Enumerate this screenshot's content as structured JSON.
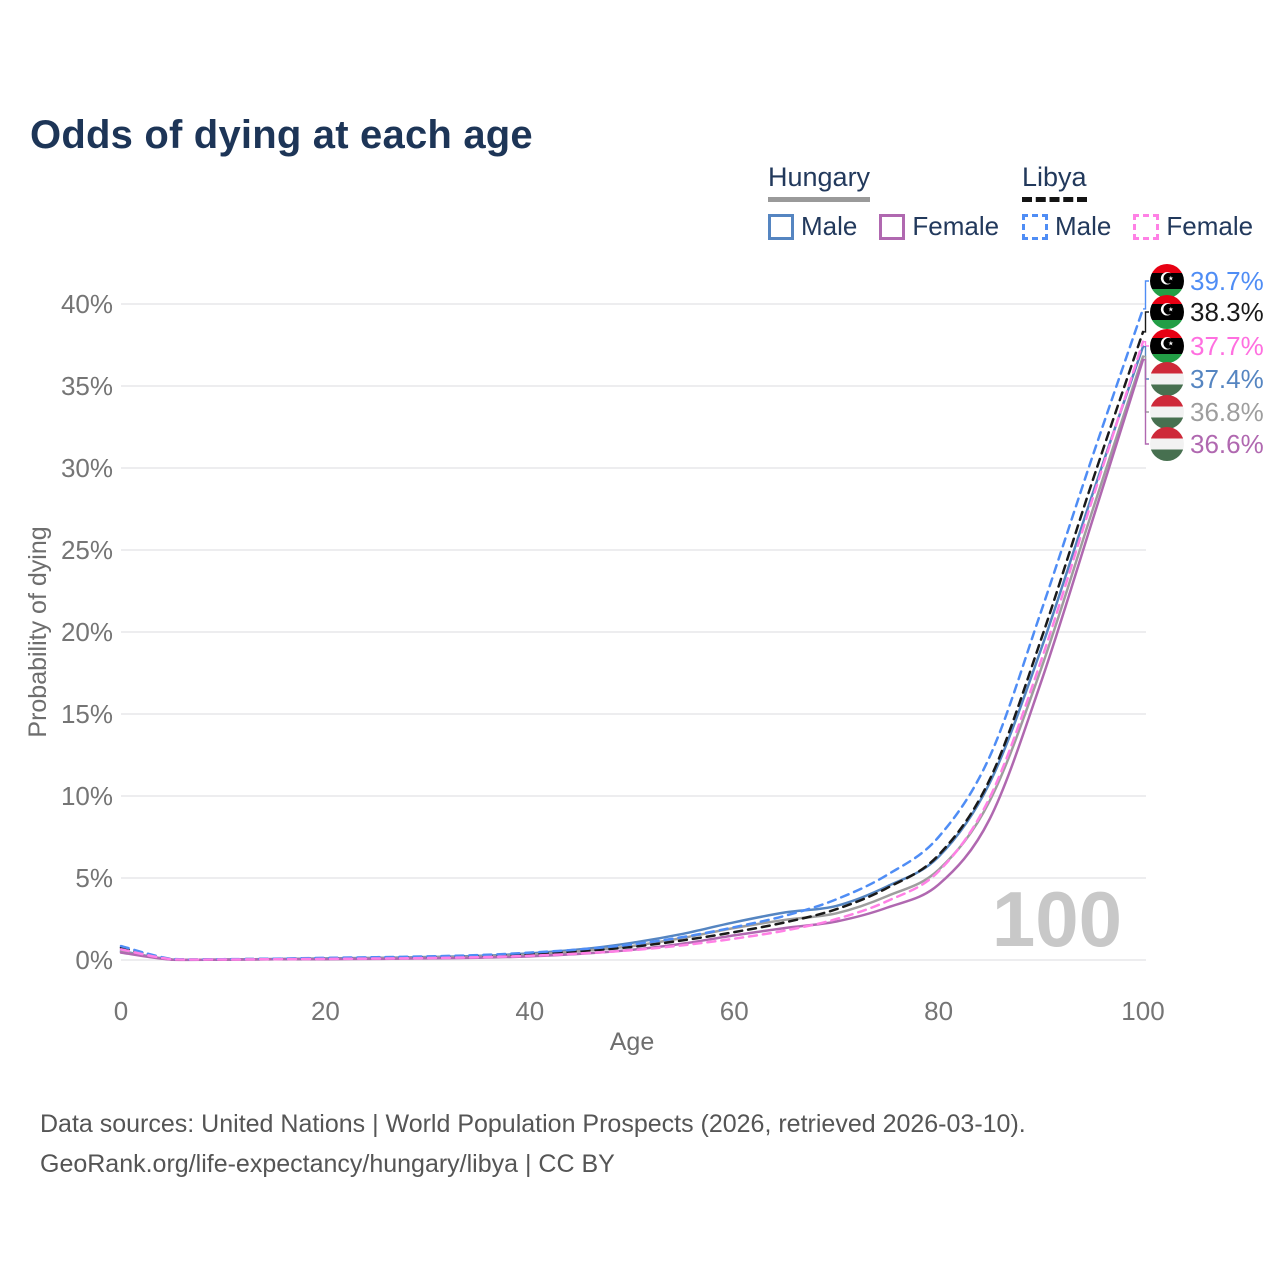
{
  "title": "Odds of dying at each age",
  "legend": {
    "groups": [
      {
        "country": "Hungary",
        "style": "solid",
        "underline_color": "#9a9a9a",
        "items": [
          {
            "label": "Male",
            "color": "#5585c1"
          },
          {
            "label": "Female",
            "color": "#b068b0"
          }
        ]
      },
      {
        "country": "Libya",
        "style": "dashed",
        "underline_color": "#141414",
        "items": [
          {
            "label": "Male",
            "color": "#4f8df5"
          },
          {
            "label": "Female",
            "color": "#ff80e5"
          }
        ]
      }
    ]
  },
  "end_labels": [
    {
      "value": "39.7%",
      "flag": "libya",
      "series": "Libya Male",
      "color": "#4f8df5"
    },
    {
      "value": "38.3%",
      "flag": "libya",
      "series": "Libya Both sexes",
      "color": "#1a1a1a"
    },
    {
      "value": "37.7%",
      "flag": "libya",
      "series": "Libya Female",
      "color": "#ff6fe0"
    },
    {
      "value": "37.4%",
      "flag": "hungary",
      "series": "Hungary Male",
      "color": "#5585c1"
    },
    {
      "value": "36.8%",
      "flag": "hungary",
      "series": "Hungary Both sexes",
      "color": "#9e9e9e"
    },
    {
      "value": "36.6%",
      "flag": "hungary",
      "series": "Hungary Female",
      "color": "#b068b0"
    }
  ],
  "watermark": "100",
  "chart_data": {
    "type": "line",
    "title": "Odds of dying at each age",
    "xlabel": "Age",
    "ylabel": "Probability of dying",
    "xlim": [
      0,
      100
    ],
    "ylim": [
      0,
      40
    ],
    "xticks": [
      0,
      20,
      40,
      60,
      80,
      100
    ],
    "ytick_labels": [
      "0%",
      "5%",
      "10%",
      "15%",
      "20%",
      "25%",
      "30%",
      "35%",
      "40%"
    ],
    "grid": "horizontal",
    "legend_position": "top-right",
    "x": [
      0,
      5,
      10,
      15,
      20,
      25,
      30,
      35,
      40,
      45,
      50,
      55,
      60,
      65,
      70,
      75,
      80,
      85,
      90,
      95,
      100
    ],
    "series": [
      {
        "name": "Libya Male",
        "country": "Libya",
        "sex": "Male",
        "color": "#4f8df5",
        "dash": true,
        "end_label": "39.7%",
        "values": [
          0.85,
          0.06,
          0.05,
          0.08,
          0.13,
          0.17,
          0.22,
          0.3,
          0.45,
          0.65,
          0.95,
          1.4,
          2.0,
          2.7,
          3.7,
          5.2,
          7.5,
          12.4,
          21.2,
          30.6,
          39.7
        ]
      },
      {
        "name": "Libya Both sexes",
        "country": "Libya",
        "sex": "Both",
        "color": "#1a1a1a",
        "dash": true,
        "end_label": "38.3%",
        "values": [
          0.75,
          0.05,
          0.04,
          0.07,
          0.11,
          0.14,
          0.18,
          0.25,
          0.36,
          0.54,
          0.8,
          1.2,
          1.7,
          2.3,
          3.1,
          4.4,
          6.4,
          11.0,
          19.5,
          29.1,
          38.3
        ]
      },
      {
        "name": "Libya Female",
        "country": "Libya",
        "sex": "Female",
        "color": "#ff80e5",
        "dash": true,
        "end_label": "37.7%",
        "values": [
          0.65,
          0.04,
          0.03,
          0.05,
          0.07,
          0.09,
          0.12,
          0.17,
          0.26,
          0.4,
          0.6,
          0.9,
          1.3,
          1.8,
          2.5,
          3.6,
          5.4,
          9.9,
          18.2,
          28.0,
          37.7
        ]
      },
      {
        "name": "Hungary Male",
        "country": "Hungary",
        "sex": "Male",
        "color": "#5585c1",
        "dash": false,
        "end_label": "37.4%",
        "values": [
          0.55,
          0.03,
          0.03,
          0.06,
          0.1,
          0.13,
          0.18,
          0.25,
          0.4,
          0.65,
          1.05,
          1.6,
          2.3,
          2.9,
          3.3,
          4.5,
          6.3,
          10.8,
          18.9,
          28.3,
          37.4
        ]
      },
      {
        "name": "Hungary Both sexes",
        "country": "Hungary",
        "sex": "Both",
        "color": "#9e9e9e",
        "dash": false,
        "end_label": "36.8%",
        "values": [
          0.5,
          0.03,
          0.03,
          0.05,
          0.08,
          0.11,
          0.15,
          0.21,
          0.33,
          0.55,
          0.85,
          1.35,
          1.95,
          2.45,
          2.85,
          3.9,
          5.5,
          9.7,
          17.7,
          27.3,
          36.8
        ]
      },
      {
        "name": "Hungary Female",
        "country": "Hungary",
        "sex": "Female",
        "color": "#b068b0",
        "dash": false,
        "end_label": "36.6%",
        "values": [
          0.45,
          0.02,
          0.02,
          0.04,
          0.05,
          0.07,
          0.1,
          0.14,
          0.22,
          0.38,
          0.62,
          1.0,
          1.5,
          1.95,
          2.35,
          3.2,
          4.6,
          8.6,
          16.9,
          26.7,
          36.6
        ]
      }
    ]
  },
  "source": {
    "line1": "Data sources: United Nations | World Population Prospects (2026, retrieved 2026-03-10).",
    "line2": "GeoRank.org/life-expectancy/hungary/libya | CC BY"
  }
}
